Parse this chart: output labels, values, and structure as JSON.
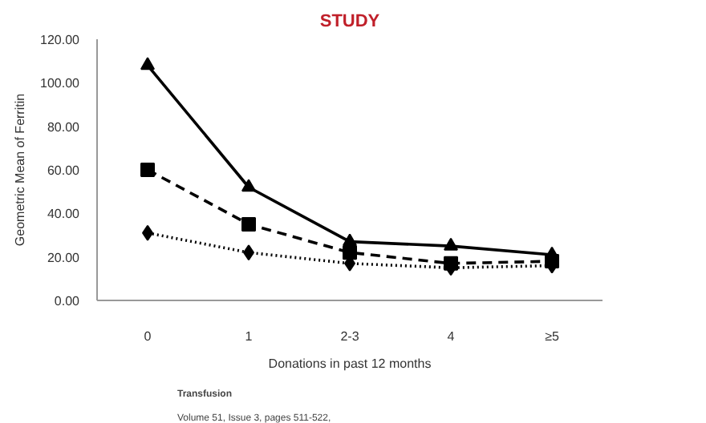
{
  "chart_data": {
    "type": "line",
    "title": "STUDY",
    "xlabel": "Donations in past 12 months",
    "ylabel": "Geometric Mean of Ferritin",
    "categories": [
      "0",
      "1",
      "2-3",
      "4",
      "≥5"
    ],
    "series": [
      {
        "color": "#000000",
        "marker": "triangle",
        "line_style": "solid",
        "values": [
          108,
          52,
          27,
          25,
          21
        ]
      },
      {
        "color": "#000000",
        "marker": "square",
        "line_style": "dashed",
        "values": [
          60,
          35,
          22,
          17,
          18
        ]
      },
      {
        "color": "#000000",
        "marker": "diamond",
        "line_style": "dotted",
        "values": [
          31,
          22,
          17,
          15,
          16
        ]
      }
    ],
    "ylim": [
      0,
      120
    ],
    "yticks": [
      {
        "value": 0,
        "label": "0.00"
      },
      {
        "value": 20,
        "label": "20.00"
      },
      {
        "value": 40,
        "label": "40.00"
      },
      {
        "value": 60,
        "label": "60.00"
      },
      {
        "value": 80,
        "label": "80.00"
      },
      {
        "value": 100,
        "label": "100.00"
      },
      {
        "value": 120,
        "label": "120.00"
      }
    ],
    "annotations": [
      "Transfusion",
      "Volume 51, Issue 3, pages 511-522,"
    ]
  }
}
